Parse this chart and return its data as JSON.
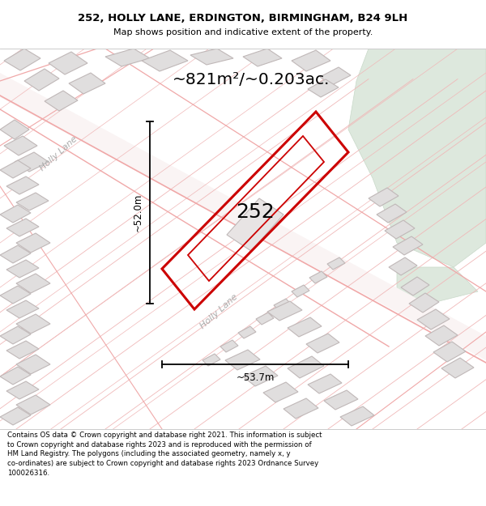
{
  "title_line1": "252, HOLLY LANE, ERDINGTON, BIRMINGHAM, B24 9LH",
  "title_line2": "Map shows position and indicative extent of the property.",
  "area_label": "~821m²/~0.203ac.",
  "property_number": "252",
  "dim_height": "~52.0m",
  "dim_width": "~53.7m",
  "street_label_1": "Holly Lane",
  "street_label_2": "Holly Lane",
  "footer_text": "Contains OS data © Crown copyright and database right 2021. This information is subject to Crown copyright and database rights 2023 and is reproduced with the permission of HM Land Registry. The polygons (including the associated geometry, namely x, y co-ordinates) are subject to Crown copyright and database rights 2023 Ordnance Survey 100026316.",
  "bg_color": "#ffffff",
  "map_bg": "#ffffff",
  "green_color": "#dde8dd",
  "plot_color": "#cc0000",
  "building_fill": "#e0dede",
  "building_edge": "#c0b8b8",
  "parcel_line_color": "#f0b8b8",
  "road_line_color": "#f0a8a8",
  "text_color": "#000000",
  "street_label_color": "#aaaaaa",
  "dim_color": "#000000",
  "footer_sep_color": "#cccccc"
}
